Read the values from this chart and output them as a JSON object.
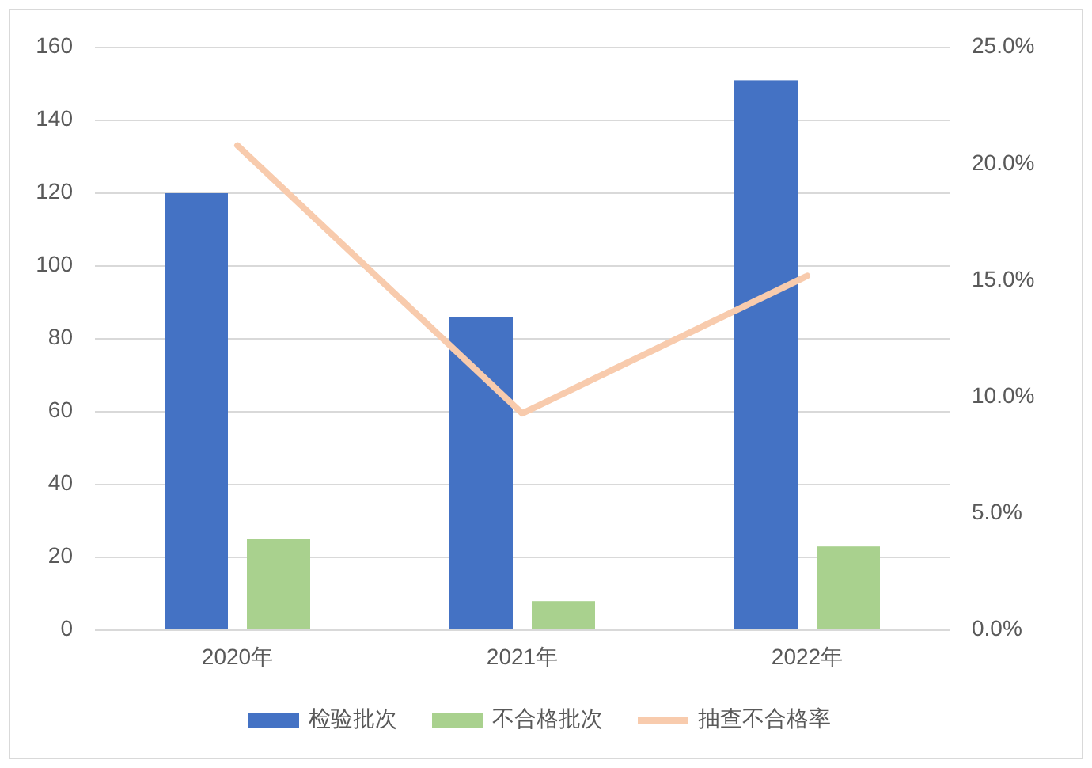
{
  "chart_data": {
    "type": "bar",
    "categories": [
      "2020年",
      "2021年",
      "2022年"
    ],
    "series": [
      {
        "name": "检验批次",
        "color": "#4472c4",
        "values": [
          120,
          86,
          151
        ]
      },
      {
        "name": "不合格批次",
        "color": "#a9d18e",
        "values": [
          25,
          8,
          23
        ]
      },
      {
        "name": "抽查不合格率",
        "color": "#f8cbad",
        "type": "line",
        "axis": "y2",
        "values": [
          20.8,
          9.3,
          15.2
        ]
      }
    ],
    "ylim": [
      0,
      160
    ],
    "yticks": [
      0,
      20,
      40,
      60,
      80,
      100,
      120,
      140,
      160
    ],
    "y2lim": [
      0,
      25
    ],
    "y2ticks": [
      {
        "value": 0,
        "label": "0.0%"
      },
      {
        "value": 5,
        "label": "5.0%"
      },
      {
        "value": 10,
        "label": "10.0%"
      },
      {
        "value": 15,
        "label": "15.0%"
      },
      {
        "value": 20,
        "label": "20.0%"
      },
      {
        "value": 25,
        "label": "25.0%"
      }
    ],
    "grid": "y",
    "legend": "bottom"
  }
}
